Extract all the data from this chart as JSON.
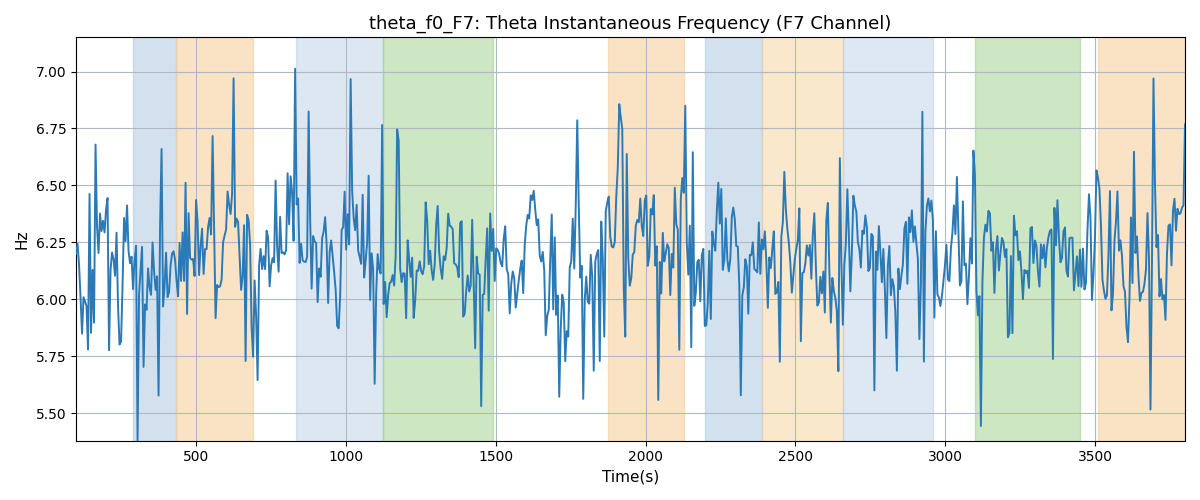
{
  "title": "theta_f0_F7: Theta Instantaneous Frequency (F7 Channel)",
  "xlabel": "Time(s)",
  "ylabel": "Hz",
  "xlim": [
    100,
    3800
  ],
  "ylim": [
    5.38,
    7.15
  ],
  "yticks": [
    5.5,
    5.75,
    6.0,
    6.25,
    6.5,
    6.75,
    7.0
  ],
  "xticks": [
    500,
    1000,
    1500,
    2000,
    2500,
    3000,
    3500
  ],
  "line_color": "#2b7ab5",
  "line_width": 1.4,
  "bg_color": "#ffffff",
  "grid_color": "#b0b8c8",
  "title_fontsize": 13,
  "label_fontsize": 11,
  "regions": [
    {
      "start": 290,
      "end": 435,
      "color": "#a8c4e0",
      "alpha": 0.5
    },
    {
      "start": 435,
      "end": 690,
      "color": "#f5c98a",
      "alpha": 0.5
    },
    {
      "start": 835,
      "end": 1125,
      "color": "#a8c4e0",
      "alpha": 0.4
    },
    {
      "start": 1125,
      "end": 1490,
      "color": "#90c97a",
      "alpha": 0.45
    },
    {
      "start": 1875,
      "end": 2130,
      "color": "#f5c98a",
      "alpha": 0.5
    },
    {
      "start": 2200,
      "end": 2390,
      "color": "#a8c4e0",
      "alpha": 0.5
    },
    {
      "start": 2390,
      "end": 2660,
      "color": "#f5c98a",
      "alpha": 0.42
    },
    {
      "start": 2660,
      "end": 2960,
      "color": "#a8c4e0",
      "alpha": 0.38
    },
    {
      "start": 3100,
      "end": 3450,
      "color": "#90c97a",
      "alpha": 0.45
    },
    {
      "start": 3510,
      "end": 3800,
      "color": "#f5c98a",
      "alpha": 0.5
    }
  ],
  "t_start": 100,
  "t_end": 3800,
  "n_points": 740
}
